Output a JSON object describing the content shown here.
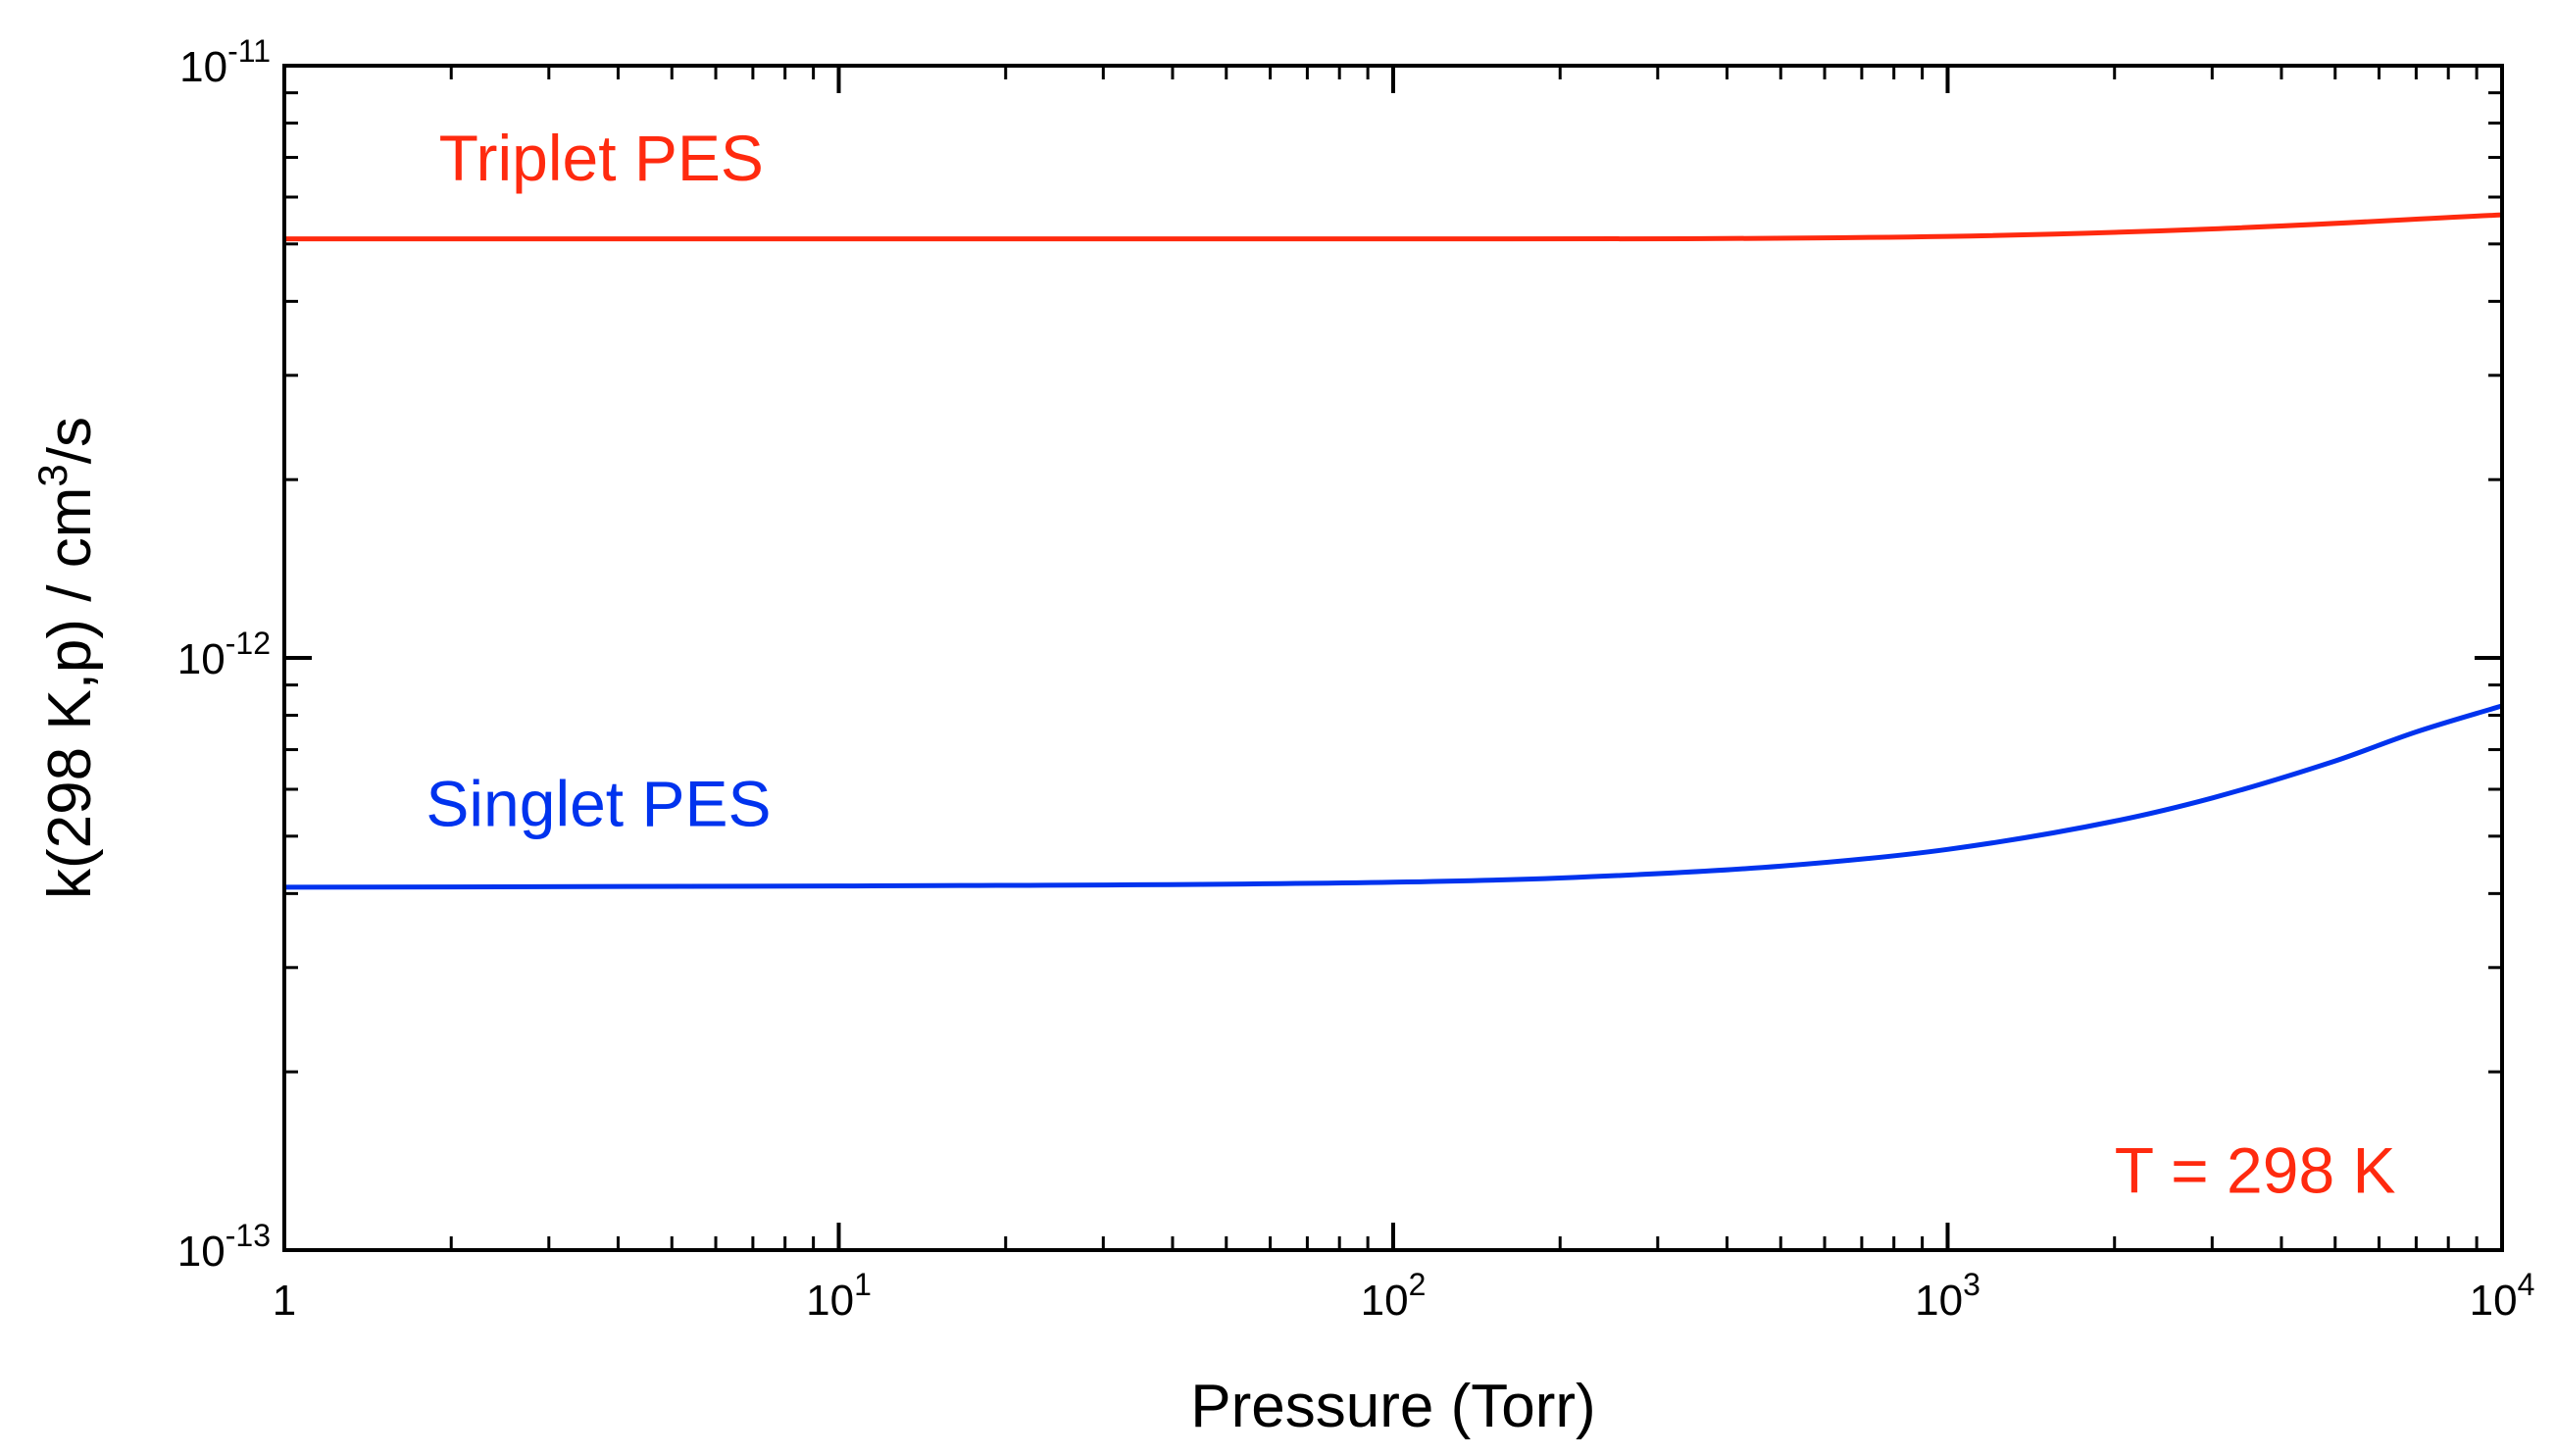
{
  "chart_data": {
    "type": "line",
    "title": "",
    "xlabel": "Pressure (Torr)",
    "ylabel": "k(298 K,p) / cm",
    "ylabel_sup": "3",
    "ylabel_tail": "/s",
    "xscale": "log",
    "yscale": "log",
    "xlim": [
      1,
      10000
    ],
    "ylim": [
      1e-13,
      1e-11
    ],
    "grid": false,
    "x_ticks": [
      {
        "value": 1,
        "base": "1",
        "exp": ""
      },
      {
        "value": 10,
        "base": "10",
        "exp": "1"
      },
      {
        "value": 100,
        "base": "10",
        "exp": "2"
      },
      {
        "value": 1000,
        "base": "10",
        "exp": "3"
      },
      {
        "value": 10000,
        "base": "10",
        "exp": "4"
      }
    ],
    "y_ticks": [
      {
        "value": 1e-13,
        "base": "10",
        "exp": "-13"
      },
      {
        "value": 1e-12,
        "base": "10",
        "exp": "-12"
      },
      {
        "value": 1e-11,
        "base": "10",
        "exp": "-11"
      }
    ],
    "series": [
      {
        "name": "Triplet PES",
        "color": "#ff2a0f",
        "label_at": {
          "x": 1.9,
          "y": 6.4e-12
        },
        "x": [
          1,
          10,
          100,
          1000,
          3000,
          10000
        ],
        "y": [
          5.1e-12,
          5.1e-12,
          5.1e-12,
          5.15e-12,
          5.3e-12,
          5.6e-12
        ]
      },
      {
        "name": "Singlet PES",
        "color": "#0033ee",
        "label_at": {
          "x": 1.8,
          "y": 5.2e-13
        },
        "x": [
          1,
          10,
          100,
          200,
          500,
          1000,
          2000,
          3000,
          5000,
          7000,
          10000
        ],
        "y": [
          4.1e-13,
          4.12e-13,
          4.18e-13,
          4.25e-13,
          4.45e-13,
          4.75e-13,
          5.3e-13,
          5.8e-13,
          6.7e-13,
          7.5e-13,
          8.3e-13
        ]
      }
    ],
    "annotations": [
      {
        "text": "T = 298 K",
        "color": "#ff2a0f",
        "at": {
          "x": 2000,
          "y": 1.25e-13
        }
      }
    ]
  }
}
